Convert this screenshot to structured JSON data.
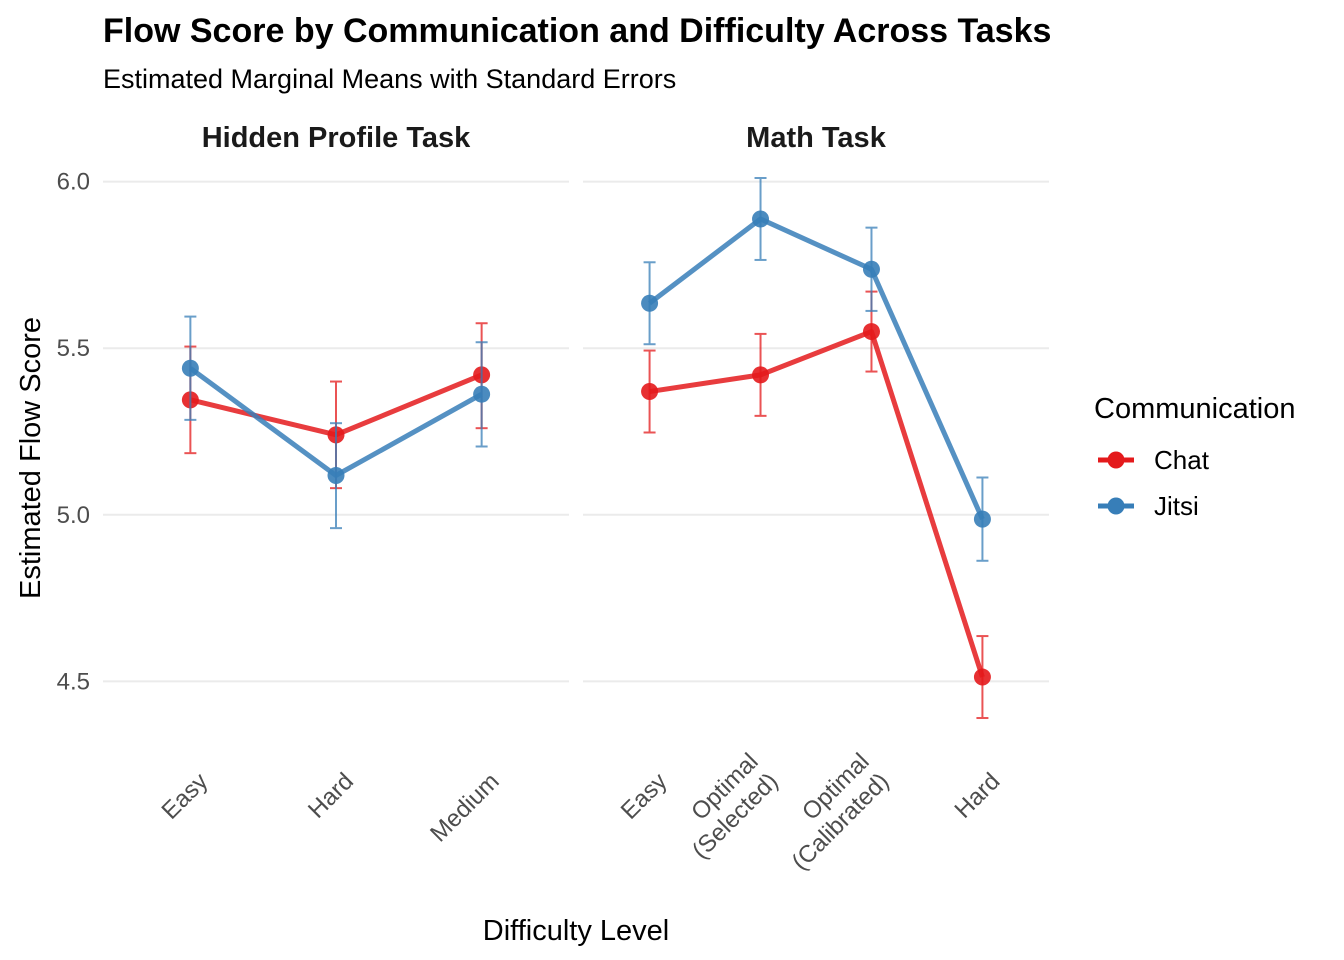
{
  "chart_data": {
    "type": "line",
    "title": "Flow Score by Communication and Difficulty Across Tasks",
    "subtitle": "Estimated Marginal Means with Standard Errors",
    "xlabel": "Difficulty Level",
    "ylabel": "Estimated Flow Score",
    "ylim": [
      4.3,
      6.05
    ],
    "yticks": [
      4.5,
      5.0,
      5.5,
      6.0
    ],
    "ytick_labels": [
      "4.5",
      "5.0",
      "5.5",
      "6.0"
    ],
    "grid": true,
    "legend": {
      "title": "Communication",
      "placement": "right",
      "entries": [
        "Chat",
        "Jitsi"
      ]
    },
    "colors": {
      "Chat": "#E41A1C",
      "Jitsi": "#377EB8"
    },
    "facets": [
      {
        "title": "Hidden Profile Task",
        "categories": [
          "Easy",
          "Hard",
          "Medium"
        ],
        "series": [
          {
            "name": "Chat",
            "values": [
              5.345,
              5.24,
              5.42
            ],
            "lower": [
              5.185,
              5.08,
              5.26
            ],
            "upper": [
              5.505,
              5.4,
              5.575
            ]
          },
          {
            "name": "Jitsi",
            "values": [
              5.44,
              5.118,
              5.362
            ],
            "lower": [
              5.285,
              4.96,
              5.205
            ],
            "upper": [
              5.595,
              5.275,
              5.518
            ]
          }
        ]
      },
      {
        "title": "Math Task",
        "categories": [
          "Easy",
          "Optimal\n(Selected)",
          "Optimal\n(Calibrated)",
          "Hard"
        ],
        "series": [
          {
            "name": "Chat",
            "values": [
              5.37,
              5.42,
              5.55,
              4.513
            ],
            "lower": [
              5.247,
              5.297,
              5.43,
              4.39
            ],
            "upper": [
              5.493,
              5.543,
              5.67,
              4.636
            ]
          },
          {
            "name": "Jitsi",
            "values": [
              5.635,
              5.888,
              5.737,
              4.987
            ],
            "lower": [
              5.512,
              5.765,
              5.612,
              4.862
            ],
            "upper": [
              5.758,
              6.011,
              5.862,
              5.112
            ]
          }
        ]
      }
    ]
  }
}
